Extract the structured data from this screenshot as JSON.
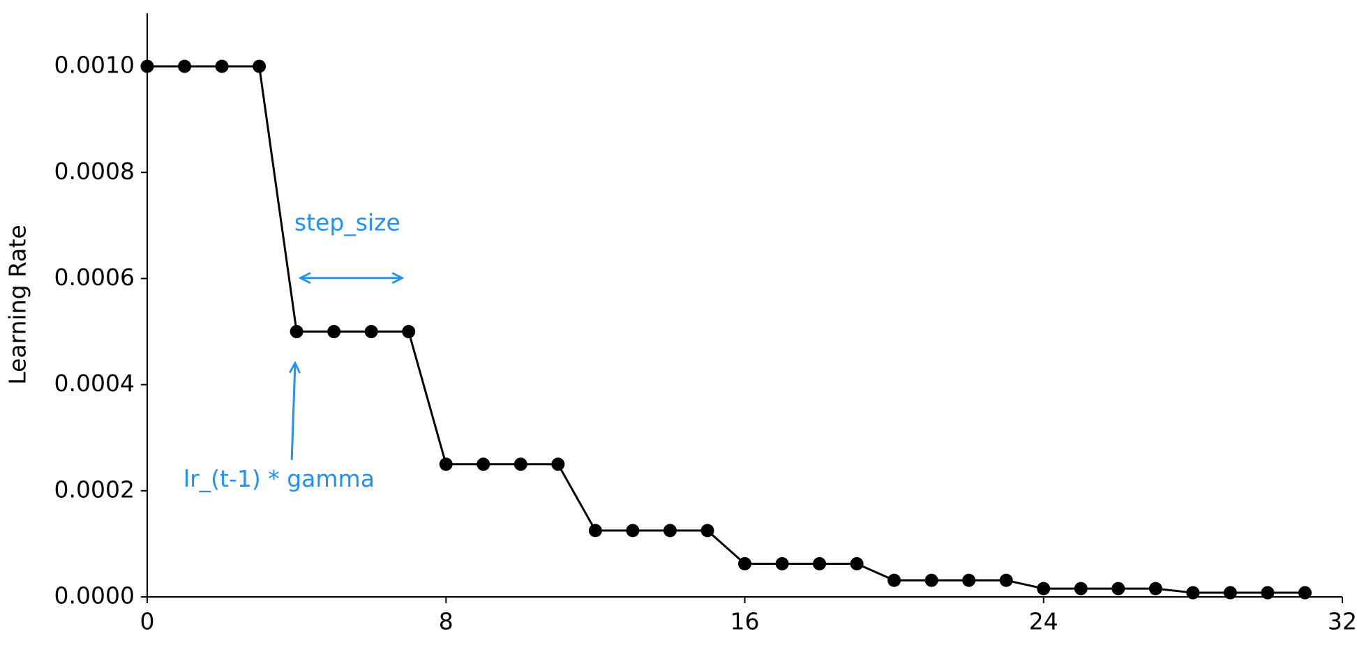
{
  "chart_data": {
    "type": "line",
    "y_label": "Learning Rate",
    "x": [
      0,
      1,
      2,
      3,
      4,
      5,
      6,
      7,
      8,
      9,
      10,
      11,
      12,
      13,
      14,
      15,
      16,
      17,
      18,
      19,
      20,
      21,
      22,
      23,
      24,
      25,
      26,
      27,
      28,
      29,
      30,
      31
    ],
    "series": [
      {
        "color": "#000000",
        "marker": "o",
        "values": [
          0.001,
          0.001,
          0.001,
          0.001,
          0.0005,
          0.0005,
          0.0005,
          0.0005,
          0.00025,
          0.00025,
          0.00025,
          0.00025,
          0.000125,
          0.000125,
          0.000125,
          0.000125,
          6.25e-05,
          6.25e-05,
          6.25e-05,
          6.25e-05,
          3.125e-05,
          3.125e-05,
          3.125e-05,
          3.125e-05,
          1.5625e-05,
          1.5625e-05,
          1.5625e-05,
          1.5625e-05,
          7.8125e-06,
          7.8125e-06,
          7.8125e-06,
          7.8125e-06
        ]
      }
    ],
    "xlim": [
      0,
      32
    ],
    "ylim": [
      0,
      0.0011
    ],
    "xticks": [
      0,
      8,
      16,
      24,
      32
    ],
    "yticks": [
      {
        "value": 0,
        "label": "0.0000"
      },
      {
        "value": 0.0002,
        "label": "0.0002"
      },
      {
        "value": 0.0004,
        "label": "0.0004"
      },
      {
        "value": 0.0006,
        "label": "0.0006"
      },
      {
        "value": 0.0008,
        "label": "0.0008"
      },
      {
        "value": 0.001,
        "label": "0.0010"
      }
    ],
    "grid": false,
    "annotations": [
      {
        "text": "step_size",
        "x": 3.94,
        "y": 0.000703,
        "color": "#1e90ff",
        "arrow_style": "<->",
        "arrow_from": [
          4.1,
          0.000601
        ],
        "arrow_to": [
          6.83,
          0.000601
        ]
      },
      {
        "text": "lr_(t-1) * gamma",
        "x": 0.97,
        "y": 0.00022,
        "color": "#1e90ff",
        "arrow_style": "->",
        "arrow_from": [
          3.87,
          0.000258
        ],
        "arrow_to": [
          3.96,
          0.000441
        ]
      }
    ]
  }
}
